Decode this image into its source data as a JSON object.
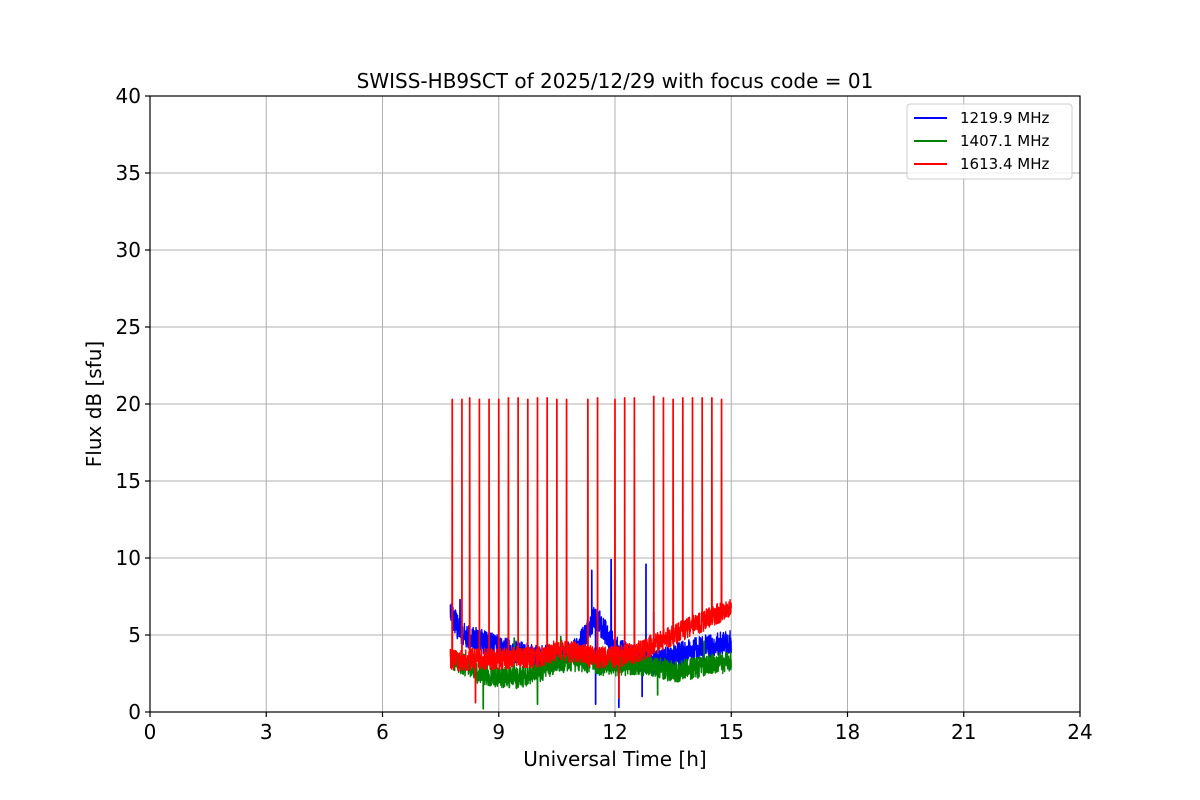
{
  "chart_data": {
    "type": "line",
    "title": "SWISS-HB9SCT of 2025/12/29 with focus code = 01",
    "xlabel": "Universal Time [h]",
    "ylabel": "Flux dB [sfu]",
    "xlim": [
      0,
      24
    ],
    "ylim": [
      0,
      40
    ],
    "xticks": [
      0,
      3,
      6,
      9,
      12,
      15,
      18,
      21,
      24
    ],
    "yticks": [
      0,
      5,
      10,
      15,
      20,
      25,
      30,
      35,
      40
    ],
    "xtick_labels": [
      "0",
      "3",
      "6",
      "9",
      "12",
      "15",
      "18",
      "21",
      "24"
    ],
    "ytick_labels": [
      "0",
      "5",
      "10",
      "15",
      "20",
      "25",
      "30",
      "35",
      "40"
    ],
    "grid": true,
    "legend_position": "top-right",
    "data_time_range": [
      7.75,
      15.0
    ],
    "series": [
      {
        "name": "1219.9 MHz",
        "color": "#0000ff",
        "base_profile": [
          [
            7.75,
            6.5
          ],
          [
            8.0,
            5.2
          ],
          [
            8.5,
            4.6
          ],
          [
            9.0,
            4.2
          ],
          [
            9.5,
            3.8
          ],
          [
            10.0,
            3.6
          ],
          [
            10.5,
            3.5
          ],
          [
            11.0,
            4.0
          ],
          [
            11.5,
            6.2
          ],
          [
            12.0,
            4.2
          ],
          [
            12.5,
            3.5
          ],
          [
            13.0,
            3.2
          ],
          [
            13.5,
            3.6
          ],
          [
            14.0,
            4.0
          ],
          [
            14.5,
            4.3
          ],
          [
            15.0,
            4.5
          ]
        ],
        "noise": 0.8,
        "spikes": [
          [
            8.0,
            7.3
          ],
          [
            11.4,
            9.2
          ],
          [
            11.9,
            9.9
          ],
          [
            12.8,
            9.6
          ],
          [
            13.0,
            6.5
          ]
        ],
        "dips": [
          [
            11.5,
            0.5
          ],
          [
            12.1,
            0.3
          ],
          [
            12.7,
            1.0
          ]
        ]
      },
      {
        "name": "1407.1 MHz",
        "color": "#008000",
        "base_profile": [
          [
            7.75,
            3.5
          ],
          [
            8.0,
            3.2
          ],
          [
            8.5,
            2.5
          ],
          [
            9.0,
            2.3
          ],
          [
            9.5,
            2.2
          ],
          [
            10.0,
            2.5
          ],
          [
            10.5,
            3.3
          ],
          [
            11.0,
            3.2
          ],
          [
            11.5,
            3.1
          ],
          [
            12.0,
            3.0
          ],
          [
            12.5,
            3.1
          ],
          [
            13.0,
            3.0
          ],
          [
            13.5,
            2.6
          ],
          [
            14.0,
            2.8
          ],
          [
            14.5,
            3.1
          ],
          [
            15.0,
            3.2
          ]
        ],
        "noise": 0.7,
        "spikes": [
          [
            9.4,
            4.8
          ],
          [
            10.6,
            4.9
          ],
          [
            14.3,
            4.6
          ]
        ],
        "dips": [
          [
            8.6,
            0.2
          ],
          [
            10.0,
            0.5
          ],
          [
            13.1,
            1.1
          ]
        ]
      },
      {
        "name": "1613.4 MHz",
        "color": "#ff0000",
        "base_profile": [
          [
            7.75,
            3.5
          ],
          [
            8.0,
            3.3
          ],
          [
            8.5,
            3.5
          ],
          [
            9.0,
            3.4
          ],
          [
            9.5,
            3.6
          ],
          [
            10.0,
            3.5
          ],
          [
            10.5,
            4.0
          ],
          [
            11.0,
            3.9
          ],
          [
            11.5,
            3.5
          ],
          [
            12.0,
            3.6
          ],
          [
            12.5,
            3.8
          ],
          [
            13.0,
            4.4
          ],
          [
            13.5,
            5.0
          ],
          [
            14.0,
            5.6
          ],
          [
            14.5,
            6.2
          ],
          [
            15.0,
            6.8
          ]
        ],
        "noise": 0.7,
        "spikes": [
          [
            7.8,
            20.3
          ],
          [
            8.05,
            20.3
          ],
          [
            8.25,
            20.4
          ],
          [
            8.5,
            20.3
          ],
          [
            8.75,
            20.3
          ],
          [
            9.0,
            20.3
          ],
          [
            9.25,
            20.4
          ],
          [
            9.5,
            20.4
          ],
          [
            9.75,
            20.3
          ],
          [
            10.0,
            20.4
          ],
          [
            10.25,
            20.4
          ],
          [
            10.5,
            20.3
          ],
          [
            10.75,
            20.3
          ],
          [
            11.3,
            20.3
          ],
          [
            11.55,
            20.4
          ],
          [
            12.0,
            20.3
          ],
          [
            12.25,
            20.4
          ],
          [
            12.5,
            20.4
          ],
          [
            13.0,
            20.5
          ],
          [
            13.25,
            20.4
          ],
          [
            13.5,
            20.3
          ],
          [
            13.75,
            20.4
          ],
          [
            14.0,
            20.4
          ],
          [
            14.25,
            20.4
          ],
          [
            14.5,
            20.4
          ],
          [
            14.75,
            20.3
          ]
        ],
        "dips": [
          [
            8.4,
            0.6
          ],
          [
            12.1,
            0.9
          ]
        ]
      }
    ]
  }
}
